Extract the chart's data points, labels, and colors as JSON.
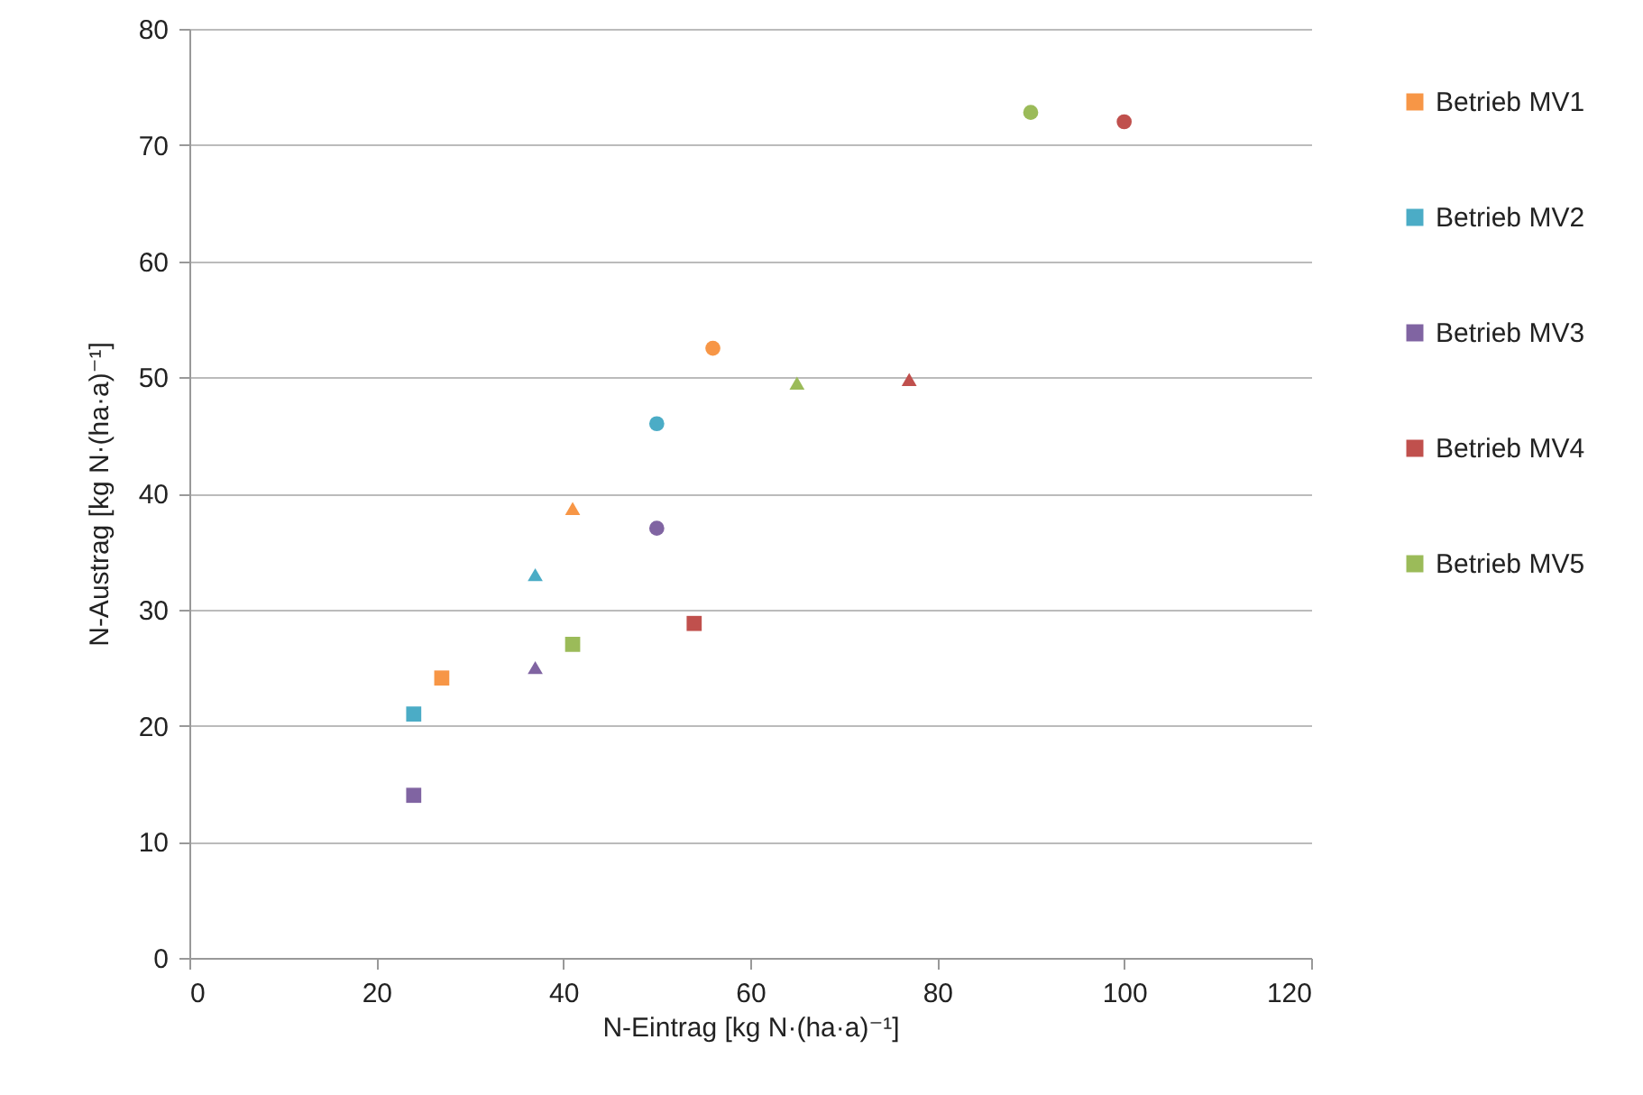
{
  "chart_data": {
    "type": "scatter",
    "xlabel": "N-Eintrag [kg N·(ha·a)⁻¹]",
    "ylabel": "N-Austrag [kg N·(ha·a)⁻¹]",
    "xlim": [
      0,
      120
    ],
    "ylim": [
      0,
      80
    ],
    "xticks": [
      0,
      20,
      40,
      60,
      80,
      100,
      120
    ],
    "yticks": [
      0,
      10,
      20,
      30,
      40,
      50,
      60,
      70,
      80
    ],
    "grid": "y",
    "legend": "right",
    "series": [
      {
        "name": "Betrieb MV1",
        "color": "#f79646",
        "marker": "square",
        "x": [
          27
        ],
        "values": [
          24.1
        ]
      },
      {
        "color": "#f79646",
        "marker": "triangle",
        "x": [
          41
        ],
        "values": [
          38.7
        ]
      },
      {
        "color": "#f79646",
        "marker": "circle",
        "x": [
          56
        ],
        "values": [
          52.5
        ]
      },
      {
        "name": "Betrieb MV2",
        "color": "#4bacc6",
        "marker": "square",
        "x": [
          24
        ],
        "values": [
          21
        ]
      },
      {
        "color": "#4bacc6",
        "marker": "triangle",
        "x": [
          37
        ],
        "values": [
          33
        ]
      },
      {
        "color": "#4bacc6",
        "marker": "circle",
        "x": [
          50
        ],
        "values": [
          46
        ]
      },
      {
        "name": "Betrieb MV3",
        "color": "#8064a2",
        "marker": "square",
        "x": [
          24
        ],
        "values": [
          14
        ]
      },
      {
        "color": "#8064a2",
        "marker": "triangle",
        "x": [
          37
        ],
        "values": [
          25
        ]
      },
      {
        "color": "#8064a2",
        "marker": "circle",
        "x": [
          50
        ],
        "values": [
          37
        ]
      },
      {
        "name": "Betrieb MV4",
        "color": "#c0504d",
        "marker": "square",
        "x": [
          54
        ],
        "values": [
          28.8
        ]
      },
      {
        "color": "#c0504d",
        "marker": "triangle",
        "x": [
          77
        ],
        "values": [
          49.8
        ]
      },
      {
        "color": "#c0504d",
        "marker": "circle",
        "x": [
          100
        ],
        "values": [
          72
        ]
      },
      {
        "name": "Betrieb MV5",
        "color": "#9bbb59",
        "marker": "square",
        "x": [
          41
        ],
        "values": [
          27
        ]
      },
      {
        "color": "#9bbb59",
        "marker": "triangle",
        "x": [
          65
        ],
        "values": [
          49.5
        ]
      },
      {
        "color": "#9bbb59",
        "marker": "circle",
        "x": [
          90
        ],
        "values": [
          72.8
        ]
      }
    ]
  }
}
